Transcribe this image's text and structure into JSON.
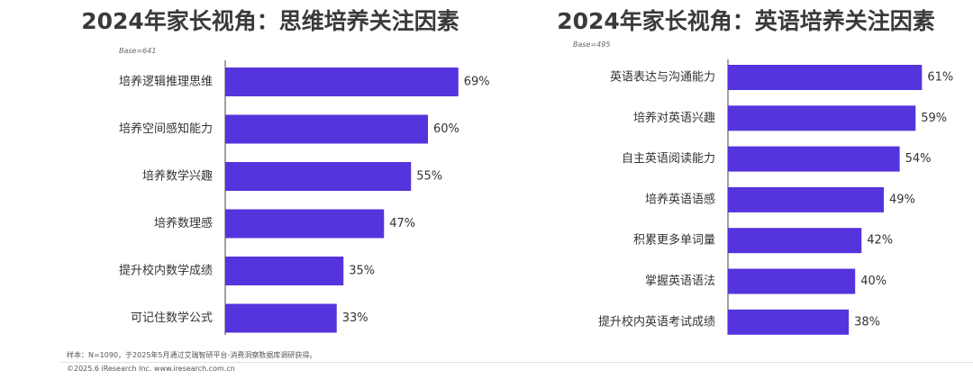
{
  "chart_data": [
    {
      "type": "bar",
      "orientation": "horizontal",
      "title": "2024年家长视角：思维培养关注因素",
      "base_note": "Base=641",
      "categories": [
        "培养逻辑推理思维",
        "培养空间感知能力",
        "培养数学兴趣",
        "培养数理感",
        "提升校内数学成绩",
        "可记住数学公式"
      ],
      "values": [
        69,
        60,
        55,
        47,
        35,
        33
      ],
      "value_labels": [
        "69%",
        "60%",
        "55%",
        "47%",
        "35%",
        "33%"
      ],
      "unit": "%",
      "xlim": [
        0,
        100
      ],
      "bar_color": "#5533dd",
      "grid": false,
      "legend": "none"
    },
    {
      "type": "bar",
      "orientation": "horizontal",
      "title": "2024年家长视角：英语培养关注因素",
      "base_note": "Base=495",
      "categories": [
        "英语表达与沟通能力",
        "培养对英语兴趣",
        "自主英语阅读能力",
        "培养英语语感",
        "积累更多单词量",
        "掌握英语语法",
        "提升校内英语考试成绩"
      ],
      "values": [
        61,
        59,
        54,
        49,
        42,
        40,
        38
      ],
      "value_labels": [
        "61%",
        "59%",
        "54%",
        "49%",
        "42%",
        "40%",
        "38%"
      ],
      "unit": "%",
      "xlim": [
        0,
        100
      ],
      "bar_color": "#5533dd",
      "grid": false,
      "legend": "none"
    }
  ],
  "footer": {
    "note": "样本：N=1090，于2025年5月通过艾瑞智研平台-消费洞察数据库调研获得。",
    "copyright": "©2025.6 iResearch Inc. www.iresearch.com.cn"
  }
}
